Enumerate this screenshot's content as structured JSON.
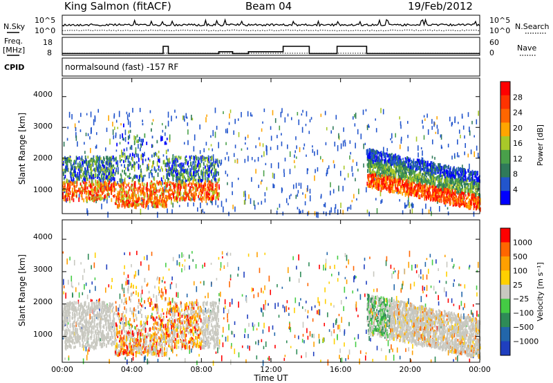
{
  "header": {
    "station": "King Salmon (fitACF)",
    "beam": "Beam 04",
    "date": "19/Feb/2012"
  },
  "left_labels": {
    "nsky": "N.Sky",
    "freq_line1": "Freq.",
    "freq_line2": "[MHz]",
    "cpid": "CPID"
  },
  "right_labels": {
    "nsearch": "N.Search",
    "nave": "Nave"
  },
  "cpid_text": "normalsound (fast) -157 RF",
  "noise_panel": {
    "yticks_left": [
      "10^5",
      "10^0"
    ],
    "yticks_right": [
      "10^5",
      "10^0"
    ]
  },
  "freq_panel": {
    "yticks_left": [
      "18",
      "8"
    ],
    "yticks_right": [
      "60",
      "0"
    ]
  },
  "time_axis": {
    "label": "Time UT",
    "ticks": [
      "00:00",
      "04:00",
      "08:00",
      "12:00",
      "16:00",
      "20:00",
      "00:00"
    ]
  },
  "power_panel": {
    "ylabel": "Slant Range [km]",
    "yticks": [
      "4000",
      "3000",
      "2000",
      "1000"
    ],
    "colorbar_label": "Power [dB]",
    "colorbar_ticks": [
      "28",
      "24",
      "20",
      "16",
      "12",
      "8",
      "4"
    ],
    "colorbar_colors": [
      "#0000ff",
      "#2255cc",
      "#2f7a5a",
      "#49a04a",
      "#a8c829",
      "#ffa500",
      "#ff6600",
      "#ff3300",
      "#ff0000"
    ]
  },
  "velocity_panel": {
    "ylabel": "Slant Range [km]",
    "yticks": [
      "4000",
      "3000",
      "2000",
      "1000"
    ],
    "colorbar_label": "Velocity [m s⁻¹]",
    "colorbar_ticks": [
      "1000",
      "500",
      "100",
      "25",
      "−25",
      "−100",
      "−500",
      "−1000"
    ],
    "colorbar_colors": [
      "#1f3fbf",
      "#2266aa",
      "#2e8b57",
      "#44cc44",
      "#c8c8c0",
      "#ffd000",
      "#ffa000",
      "#ff6600",
      "#ff0000"
    ]
  },
  "chart_data": [
    {
      "type": "line",
      "name": "noise",
      "xlabel": "",
      "ylabel": "",
      "xlim": [
        0,
        24
      ],
      "series": [
        {
          "name": "N.Sky",
          "style": "solid"
        },
        {
          "name": "N.Search",
          "style": "dotted"
        }
      ]
    },
    {
      "type": "line",
      "name": "frequency",
      "xlim": [
        0,
        24
      ],
      "ylim": [
        8,
        18
      ],
      "x": [
        0,
        5.8,
        5.8,
        6.1,
        6.1,
        9.0,
        9.0,
        9.8,
        9.8,
        10.7,
        10.7,
        12.7,
        12.7,
        14.2,
        14.2,
        15.8,
        15.8,
        17.5,
        17.5,
        24
      ],
      "y": [
        9,
        9,
        13,
        13,
        9,
        9,
        10,
        10,
        9,
        9,
        10,
        10,
        13,
        13,
        9,
        9,
        13,
        13,
        9,
        9
      ]
    },
    {
      "type": "heatmap",
      "name": "power",
      "xlim": [
        0,
        24
      ],
      "ylim": [
        200,
        4600
      ],
      "colorbar_range_db": [
        0,
        30
      ]
    },
    {
      "type": "heatmap",
      "name": "velocity",
      "xlim": [
        0,
        24
      ],
      "ylim": [
        200,
        4600
      ],
      "colorbar_range_ms": [
        -1000,
        1000
      ]
    }
  ]
}
